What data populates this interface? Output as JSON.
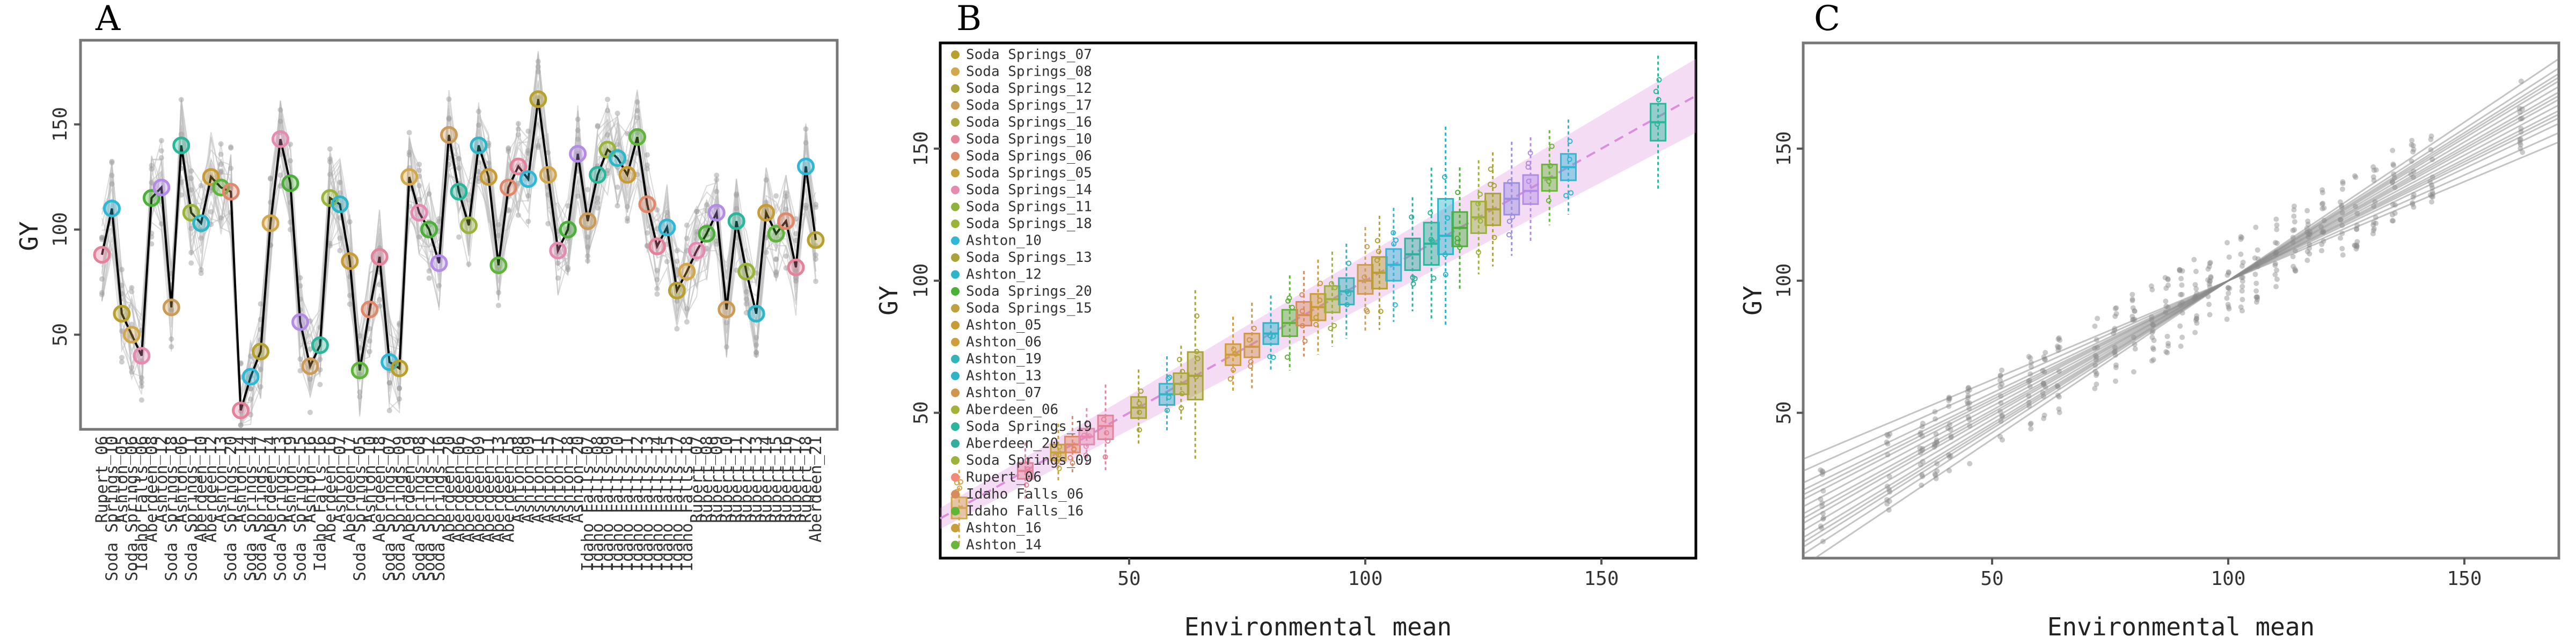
{
  "panels": [
    {
      "label": "A"
    },
    {
      "label": "B"
    },
    {
      "label": "C"
    }
  ],
  "chart_data": [
    {
      "type": "line",
      "panel": "A",
      "xlabel": "",
      "ylabel": "GY",
      "ylim": [
        5,
        190
      ],
      "yticks": [
        50,
        100,
        150
      ],
      "grid": false,
      "mean_values": [
        88,
        110,
        60,
        50,
        40,
        115,
        120,
        63,
        140,
        108,
        103,
        125,
        120,
        118,
        14,
        30,
        42,
        103,
        143,
        122,
        56,
        35,
        45,
        115,
        112,
        85,
        33,
        62,
        87,
        37,
        34,
        125,
        108,
        100,
        84,
        145,
        118,
        102,
        140,
        125,
        83,
        120,
        130,
        124,
        162,
        126,
        90,
        100,
        136,
        104,
        126,
        138,
        134,
        126,
        144,
        112,
        92,
        101,
        71,
        80,
        90,
        98,
        108,
        62,
        104,
        80,
        60,
        108,
        98,
        104,
        82,
        130,
        95
      ],
      "category_labels": [
        "Rupert_06",
        "Soda Springs_10",
        "Ashton_05",
        "Soda Springs_06",
        "Idaho Falls_06",
        "Aberdeen_08",
        "Ashton_12",
        "Soda Springs_18",
        "Ashton_06",
        "Soda Springs_11",
        "Aberdeen_10",
        "Aberdeen_12",
        "Ashton_13",
        "Soda Springs_20",
        "Ashton_14",
        "Soda Springs_14",
        "Soda Springs_17",
        "Aberdeen_14",
        "Soda Springs_13",
        "Ashton_19",
        "Soda Springs_15",
        "Ashton_16",
        "Idaho Falls_16",
        "Aberdeen_16",
        "Ashton_07",
        "Aberdeen_17",
        "Soda Springs_05",
        "Ashton_10",
        "Aberdeen_18",
        "Soda Springs_07",
        "Soda Springs_09",
        "Aberdeen_19",
        "Soda Springs_08",
        "Soda Springs_12",
        "Soda Springs_16",
        "Aberdeen_20",
        "Aberdeen_06",
        "Aberdeen_07",
        "Aberdeen_09",
        "Aberdeen_11",
        "Aberdeen_13",
        "Aberdeen_15",
        "Ashton_08",
        "Ashton_09",
        "Ashton_11",
        "Ashton_15",
        "Ashton_17",
        "Ashton_18",
        "Ashton_20",
        "Idaho Falls_07",
        "Idaho Falls_08",
        "Idaho Falls_09",
        "Idaho Falls_10",
        "Idaho Falls_11",
        "Idaho Falls_12",
        "Idaho Falls_13",
        "Idaho Falls_14",
        "Idaho Falls_15",
        "Idaho Falls_17",
        "Idaho Falls_18",
        "Rupert_07",
        "Rupert_08",
        "Rupert_09",
        "Rupert_10",
        "Rupert_11",
        "Rupert_12",
        "Rupert_13",
        "Rupert_14",
        "Rupert_15",
        "Rupert_16",
        "Rupert_17",
        "Rupert_18",
        "Aberdeen_21"
      ]
    },
    {
      "type": "scatter",
      "panel": "B",
      "xlabel": "Environmental mean",
      "ylabel": "GY",
      "xlim": [
        10,
        170
      ],
      "ylim": [
        -5,
        190
      ],
      "xticks": [
        50,
        100,
        150
      ],
      "yticks": [
        50,
        100,
        150
      ],
      "grid": false,
      "legend_position": "top-left",
      "legend": [
        {
          "name": "Soda Springs_07",
          "color": "#b8a02c"
        },
        {
          "name": "Soda Springs_08",
          "color": "#d3a74b"
        },
        {
          "name": "Soda Springs_12",
          "color": "#a8a33a"
        },
        {
          "name": "Soda Springs_17",
          "color": "#cc9b57"
        },
        {
          "name": "Soda Springs_16",
          "color": "#a9a83b"
        },
        {
          "name": "Soda Springs_10",
          "color": "#e4829a"
        },
        {
          "name": "Soda Springs_06",
          "color": "#e0896a"
        },
        {
          "name": "Soda Springs_05",
          "color": "#c6a33a"
        },
        {
          "name": "Soda Springs_14",
          "color": "#e68ab2"
        },
        {
          "name": "Soda Springs_11",
          "color": "#8fb33a"
        },
        {
          "name": "Soda Springs_18",
          "color": "#9ab43a"
        },
        {
          "name": "Ashton_10",
          "color": "#2fb7d6"
        },
        {
          "name": "Soda Springs_13",
          "color": "#a9a33a"
        },
        {
          "name": "Ashton_12",
          "color": "#2eb5c8"
        },
        {
          "name": "Soda Springs_20",
          "color": "#4bb03a"
        },
        {
          "name": "Soda Springs_15",
          "color": "#c0a140"
        },
        {
          "name": "Ashton_05",
          "color": "#c99b35"
        },
        {
          "name": "Ashton_06",
          "color": "#cf9d3c"
        },
        {
          "name": "Ashton_19",
          "color": "#32b4b8"
        },
        {
          "name": "Ashton_13",
          "color": "#2db4c6"
        },
        {
          "name": "Ashton_07",
          "color": "#d1964a"
        },
        {
          "name": "Aberdeen_06",
          "color": "#a4b23a"
        },
        {
          "name": "Soda Springs_19",
          "color": "#2ab69a"
        },
        {
          "name": "Aberdeen_20",
          "color": "#31ae9c"
        },
        {
          "name": "Soda Springs_09",
          "color": "#9db23a"
        },
        {
          "name": "Rupert_06",
          "color": "#f08a7a"
        },
        {
          "name": "Idaho Falls_06",
          "color": "#d68c5c"
        },
        {
          "name": "Idaho Falls_16",
          "color": "#5fb53a"
        },
        {
          "name": "Ashton_16",
          "color": "#c89d3a"
        },
        {
          "name": "Ashton_14",
          "color": "#6bb53a"
        }
      ],
      "box_groups": [
        {
          "mean": 14,
          "median": 14,
          "q1": 10,
          "q3": 18,
          "color": "#d3a74b"
        },
        {
          "mean": 28,
          "median": 28,
          "q1": 25,
          "q3": 31,
          "color": "#e4829a"
        },
        {
          "mean": 35,
          "median": 35,
          "q1": 32,
          "q3": 38,
          "color": "#c6a33a"
        },
        {
          "mean": 38,
          "median": 38,
          "q1": 35,
          "q3": 41,
          "color": "#e0896a"
        },
        {
          "mean": 41,
          "median": 41,
          "q1": 38,
          "q3": 44,
          "color": "#e68ab2"
        },
        {
          "mean": 45,
          "median": 45,
          "q1": 40,
          "q3": 49,
          "color": "#e4829a"
        },
        {
          "mean": 52,
          "median": 52,
          "q1": 48,
          "q3": 56,
          "color": "#a8a33a"
        },
        {
          "mean": 58,
          "median": 57,
          "q1": 53,
          "q3": 61,
          "color": "#2eb5c8"
        },
        {
          "mean": 61,
          "median": 61,
          "q1": 57,
          "q3": 65,
          "color": "#a9a83b"
        },
        {
          "mean": 64,
          "median": 64,
          "q1": 55,
          "q3": 73,
          "color": "#a8a33a"
        },
        {
          "mean": 72,
          "median": 72,
          "q1": 68,
          "q3": 76,
          "color": "#cf9d3c"
        },
        {
          "mean": 76,
          "median": 75,
          "q1": 71,
          "q3": 80,
          "color": "#d1964a"
        },
        {
          "mean": 80,
          "median": 80,
          "q1": 76,
          "q3": 84,
          "color": "#2db4c6"
        },
        {
          "mean": 84,
          "median": 84,
          "q1": 79,
          "q3": 89,
          "color": "#5fb53a"
        },
        {
          "mean": 87,
          "median": 87,
          "q1": 83,
          "q3": 92,
          "color": "#d68c5c"
        },
        {
          "mean": 90,
          "median": 90,
          "q1": 85,
          "q3": 95,
          "color": "#c99b35"
        },
        {
          "mean": 93,
          "median": 93,
          "q1": 88,
          "q3": 98,
          "color": "#9db23a"
        },
        {
          "mean": 96,
          "median": 96,
          "q1": 91,
          "q3": 101,
          "color": "#32b4b8"
        },
        {
          "mean": 100,
          "median": 100,
          "q1": 95,
          "q3": 106,
          "color": "#cc9b57"
        },
        {
          "mean": 103,
          "median": 103,
          "q1": 97,
          "q3": 109,
          "color": "#b8a02c"
        },
        {
          "mean": 106,
          "median": 106,
          "q1": 100,
          "q3": 112,
          "color": "#2fb7d6"
        },
        {
          "mean": 110,
          "median": 110,
          "q1": 104,
          "q3": 116,
          "color": "#31ae9c"
        },
        {
          "mean": 114,
          "median": 114,
          "q1": 106,
          "q3": 122,
          "color": "#2ab69a"
        },
        {
          "mean": 117,
          "median": 117,
          "q1": 110,
          "q3": 131,
          "color": "#2eb5c8"
        },
        {
          "mean": 120,
          "median": 120,
          "q1": 113,
          "q3": 126,
          "color": "#4bb03a"
        },
        {
          "mean": 124,
          "median": 124,
          "q1": 118,
          "q3": 130,
          "color": "#9ab43a"
        },
        {
          "mean": 127,
          "median": 127,
          "q1": 121,
          "q3": 133,
          "color": "#a9a33a"
        },
        {
          "mean": 131,
          "median": 131,
          "q1": 125,
          "q3": 137,
          "color": "#9b8fe0"
        },
        {
          "mean": 135,
          "median": 134,
          "q1": 129,
          "q3": 140,
          "color": "#b48be6"
        },
        {
          "mean": 139,
          "median": 139,
          "q1": 134,
          "q3": 144,
          "color": "#6bb53a"
        },
        {
          "mean": 143,
          "median": 143,
          "q1": 138,
          "q3": 148,
          "color": "#2fb7d6"
        },
        {
          "mean": 162,
          "median": 160,
          "q1": 153,
          "q3": 167,
          "color": "#2ab69a"
        }
      ],
      "fit_line": {
        "intercept": 0,
        "slope": 1,
        "color": "#d98fd9"
      }
    },
    {
      "type": "scatter",
      "panel": "C",
      "xlabel": "Environmental mean",
      "ylabel": "GY",
      "xlim": [
        10,
        170
      ],
      "ylim": [
        -5,
        190
      ],
      "xticks": [
        50,
        100,
        150
      ],
      "yticks": [
        50,
        100,
        150
      ],
      "grid": false,
      "regression_lines": [
        {
          "intercept": -10,
          "slope": 1.1
        },
        {
          "intercept": 25,
          "slope": 0.75
        },
        {
          "intercept": -5,
          "slope": 1.05
        },
        {
          "intercept": 8,
          "slope": 0.92
        },
        {
          "intercept": 15,
          "slope": 0.85
        },
        {
          "intercept": -15,
          "slope": 1.15
        },
        {
          "intercept": 2,
          "slope": 0.98
        },
        {
          "intercept": 5,
          "slope": 0.95
        },
        {
          "intercept": -8,
          "slope": 1.08
        },
        {
          "intercept": 12,
          "slope": 0.88
        },
        {
          "intercept": -2,
          "slope": 1.02
        },
        {
          "intercept": 20,
          "slope": 0.8
        },
        {
          "intercept": -12,
          "slope": 1.12
        },
        {
          "intercept": 0,
          "slope": 1.0
        },
        {
          "intercept": 10,
          "slope": 0.9
        },
        {
          "intercept": -20,
          "slope": 1.2
        }
      ]
    }
  ]
}
